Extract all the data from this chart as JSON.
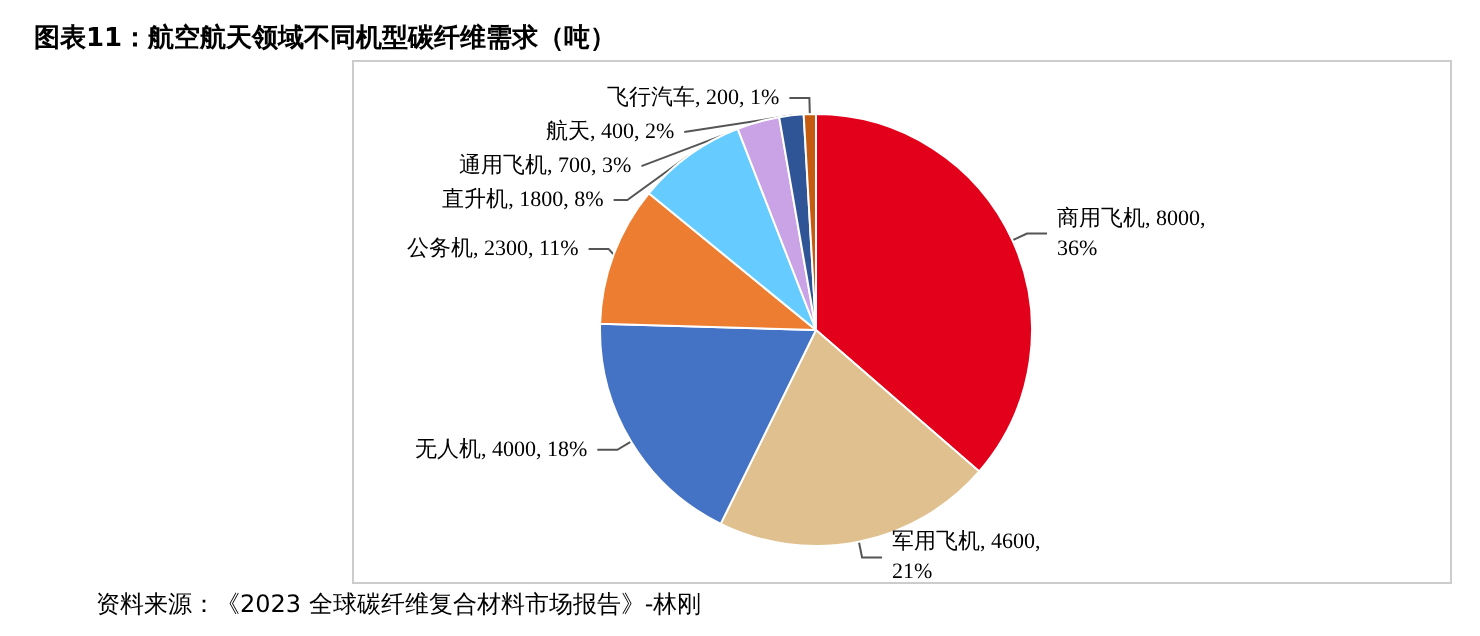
{
  "chart_data": {
    "type": "pie",
    "title": "图表11：航空航天领域不同机型碳纤维需求（吨）",
    "categories": [
      "商用飞机",
      "军用飞机",
      "无人机",
      "公务机",
      "直升机",
      "通用飞机",
      "航天",
      "飞行汽车"
    ],
    "values": [
      8000,
      4600,
      4000,
      2300,
      1800,
      700,
      400,
      200
    ],
    "value_labels": [
      "8000, 36%",
      "4600, 21%",
      "4000, 18%",
      "2300, 11%",
      "1800, 8%",
      "700, 3%",
      "400, 2%",
      "200, 1%"
    ],
    "colors": [
      "#e2001a",
      "#dfc08e",
      "#4472c4",
      "#ed7d31",
      "#66ccff",
      "#c9a3e6",
      "#2f5597",
      "#c55a11"
    ],
    "annotations": [
      "资料来源：《2023 全球碳纤维复合材料市场报告》-林刚"
    ],
    "legend": false
  }
}
